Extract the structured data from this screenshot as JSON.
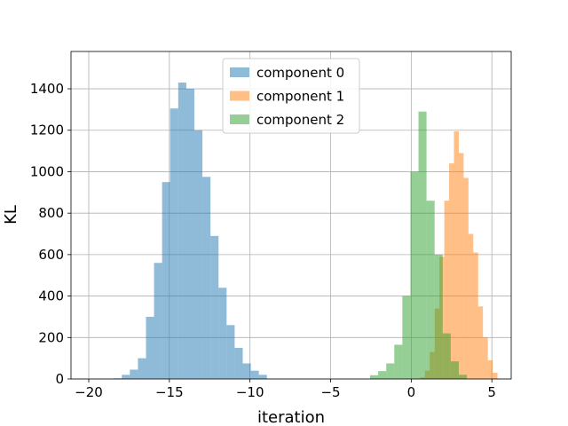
{
  "chart_data": {
    "type": "bar",
    "title": "",
    "xlabel": "iteration",
    "ylabel": "KL",
    "xlim": [
      -21.1,
      6.2
    ],
    "ylim": [
      0,
      1580
    ],
    "xticks": [
      -20,
      -15,
      -10,
      -5,
      0,
      5
    ],
    "yticks": [
      0,
      200,
      400,
      600,
      800,
      1000,
      1200,
      1400
    ],
    "grid": true,
    "legend_position": "top-center",
    "series": [
      {
        "name": "component 0",
        "color": "#1f77b4",
        "bins": [
          [
            -18.45,
            -17.95,
            3
          ],
          [
            -17.95,
            -17.45,
            20
          ],
          [
            -17.45,
            -16.95,
            45
          ],
          [
            -16.95,
            -16.45,
            100
          ],
          [
            -16.45,
            -15.95,
            300
          ],
          [
            -15.95,
            -15.45,
            560
          ],
          [
            -15.45,
            -14.95,
            950
          ],
          [
            -14.95,
            -14.45,
            1305
          ],
          [
            -14.45,
            -13.95,
            1430
          ],
          [
            -13.95,
            -13.45,
            1400
          ],
          [
            -13.45,
            -12.95,
            1200
          ],
          [
            -12.95,
            -12.45,
            975
          ],
          [
            -12.45,
            -11.95,
            690
          ],
          [
            -11.95,
            -11.45,
            440
          ],
          [
            -11.45,
            -10.95,
            260
          ],
          [
            -10.95,
            -10.45,
            150
          ],
          [
            -10.45,
            -9.95,
            75
          ],
          [
            -9.95,
            -9.45,
            40
          ],
          [
            -9.45,
            -8.95,
            20
          ]
        ]
      },
      {
        "name": "component 1",
        "color": "#ff7f0e",
        "bins": [
          [
            0.55,
            0.85,
            8
          ],
          [
            0.85,
            1.15,
            40
          ],
          [
            1.15,
            1.45,
            130
          ],
          [
            1.45,
            1.75,
            340
          ],
          [
            1.75,
            2.05,
            590
          ],
          [
            2.05,
            2.35,
            860
          ],
          [
            2.35,
            2.65,
            1040
          ],
          [
            2.65,
            2.95,
            1195
          ],
          [
            2.95,
            3.25,
            1090
          ],
          [
            3.25,
            3.55,
            970
          ],
          [
            3.55,
            3.85,
            700
          ],
          [
            3.85,
            4.15,
            610
          ],
          [
            4.15,
            4.45,
            350
          ],
          [
            4.45,
            4.75,
            200
          ],
          [
            4.75,
            5.05,
            90
          ],
          [
            5.05,
            5.35,
            30
          ]
        ]
      },
      {
        "name": "component 2",
        "color": "#2ca02c",
        "bins": [
          [
            -2.55,
            -2.05,
            18
          ],
          [
            -2.05,
            -1.55,
            38
          ],
          [
            -1.55,
            -1.05,
            75
          ],
          [
            -1.05,
            -0.55,
            165
          ],
          [
            -0.55,
            -0.05,
            400
          ],
          [
            -0.05,
            0.45,
            1000
          ],
          [
            0.45,
            0.95,
            1290
          ],
          [
            0.95,
            1.45,
            860
          ],
          [
            1.45,
            1.95,
            600
          ],
          [
            1.95,
            2.45,
            220
          ],
          [
            2.45,
            2.95,
            85
          ],
          [
            2.95,
            3.45,
            20
          ]
        ]
      }
    ]
  }
}
